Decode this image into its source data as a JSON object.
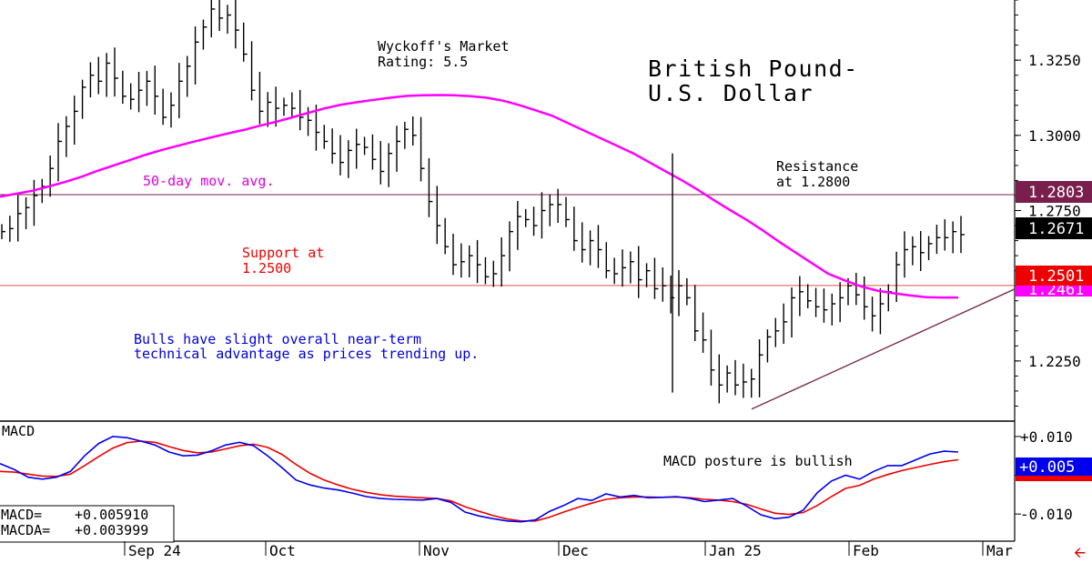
{
  "chart_data": {
    "type": "ohlc",
    "title_line1": "British Pound-",
    "title_line2": "U.S. Dollar",
    "rating_line1": "Wyckoff's Market",
    "rating_line2": "Rating: 5.5",
    "annotations": {
      "moving_average_label": "50-day mov. avg.",
      "support_line1": "Support at",
      "support_line2": "1.2500",
      "resistance_line1": "Resistance",
      "resistance_line2": "at 1.2800",
      "commentary_line1": "Bulls have slight overall near-term",
      "commentary_line2": "technical advantage as prices trending up.",
      "macd_comment": "MACD posture is bullish"
    },
    "x_ticks": [
      "Sep 24",
      "Oct",
      "Nov",
      "Dec",
      "Jan 25",
      "Feb",
      "Mar"
    ],
    "price_axis": {
      "ticks": [
        "1.3250",
        "1.3000",
        "1.2750",
        "1.2250"
      ],
      "tick_values": [
        1.325,
        1.3,
        1.275,
        1.225
      ],
      "ylim": [
        1.205,
        1.345
      ]
    },
    "price_tags": {
      "resistance": "1.2803",
      "last": "1.2671",
      "support": "1.2501",
      "ma": "1.2461"
    },
    "levels": {
      "resistance": 1.2803,
      "support": 1.2501
    },
    "trendline": {
      "from": 1.209,
      "to": 1.2489
    },
    "colors": {
      "bars": "#000000",
      "moving_average": "#ff00ff",
      "resistance_line": "#7a1f4d",
      "support_line": "#e05050",
      "trendline": "#7a3050",
      "macd_line": "#0000ee",
      "signal_line": "#ee0000",
      "support_text": "#ee0000",
      "ma_text": "#dd00dd",
      "commentary_text": "#0000dd"
    },
    "price_series": [
      1.268,
      1.269,
      1.274,
      1.276,
      1.28,
      1.283,
      1.289,
      1.298,
      1.303,
      1.308,
      1.316,
      1.32,
      1.318,
      1.324,
      1.319,
      1.313,
      1.312,
      1.315,
      1.318,
      1.313,
      1.306,
      1.31,
      1.318,
      1.323,
      1.331,
      1.336,
      1.342,
      1.339,
      1.34,
      1.335,
      1.327,
      1.315,
      1.308,
      1.311,
      1.309,
      1.31,
      1.309,
      1.306,
      1.305,
      1.301,
      1.298,
      1.294,
      1.291,
      1.295,
      1.297,
      1.296,
      1.292,
      1.288,
      1.294,
      1.298,
      1.302,
      1.3,
      1.289,
      1.278,
      1.27,
      1.263,
      1.257,
      1.258,
      1.26,
      1.257,
      1.253,
      1.254,
      1.26,
      1.268,
      1.273,
      1.272,
      1.27,
      1.275,
      1.277,
      1.277,
      1.272,
      1.265,
      1.262,
      1.265,
      1.262,
      1.255,
      1.254,
      1.256,
      1.258,
      1.252,
      1.255,
      1.249,
      1.25,
      1.246,
      1.25,
      1.246,
      1.235,
      1.232,
      1.222,
      1.217,
      1.221,
      1.217,
      1.218,
      1.219,
      1.227,
      1.233,
      1.235,
      1.238,
      1.246,
      1.248,
      1.245,
      1.243,
      1.242,
      1.244,
      1.246,
      1.25,
      1.247,
      1.243,
      1.24,
      1.244,
      1.248,
      1.257,
      1.262,
      1.263,
      1.261,
      1.264,
      1.266,
      1.266,
      1.268,
      1.267
    ],
    "moving_average": [
      1.2796,
      1.2806,
      1.2816,
      1.283,
      1.2845,
      1.2862,
      1.2882,
      1.29,
      1.2918,
      1.2936,
      1.2952,
      1.2966,
      1.298,
      1.2993,
      1.3006,
      1.3018,
      1.3032,
      1.3045,
      1.306,
      1.3075,
      1.309,
      1.3102,
      1.311,
      1.3118,
      1.3125,
      1.3131,
      1.3133,
      1.3134,
      1.3133,
      1.313,
      1.3125,
      1.3115,
      1.31,
      1.3083,
      1.3065,
      1.304,
      1.3015,
      1.299,
      1.2965,
      1.294,
      1.291,
      1.288,
      1.285,
      1.2818,
      1.2783,
      1.275,
      1.2718,
      1.2683,
      1.2645,
      1.261,
      1.2575,
      1.254,
      1.2518,
      1.2498,
      1.2484,
      1.2475,
      1.2468,
      1.2462,
      1.2461,
      1.2461
    ],
    "macd": {
      "macd_label": "MACD",
      "macd_readout_label": "MACD=",
      "macd_readout_value": "+0.005910",
      "macda_readout_label": "MACDA=",
      "macda_readout_value": "+0.003999",
      "axis_ticks": [
        "+0.010",
        "0.000",
        "-0.010"
      ],
      "axis_values": [
        0.01,
        0.0,
        -0.01
      ],
      "ylim": [
        -0.017,
        0.0135
      ],
      "macd_tag": "+0.005",
      "macd_series": [
        0.003,
        0.0015,
        -0.0005,
        -0.001,
        -0.0005,
        0.001,
        0.005,
        0.0082,
        0.01,
        0.0097,
        0.0088,
        0.0078,
        0.006,
        0.005,
        0.0052,
        0.0063,
        0.0078,
        0.0085,
        0.0076,
        0.005,
        0.002,
        -0.0012,
        -0.0025,
        -0.0033,
        -0.0038,
        -0.0046,
        -0.0055,
        -0.006,
        -0.0062,
        -0.0063,
        -0.0064,
        -0.006,
        -0.007,
        -0.0095,
        -0.0105,
        -0.0112,
        -0.0118,
        -0.012,
        -0.0115,
        -0.0093,
        -0.0078,
        -0.006,
        -0.0065,
        -0.0048,
        -0.0056,
        -0.0052,
        -0.0058,
        -0.0057,
        -0.0055,
        -0.006,
        -0.0068,
        -0.0064,
        -0.006,
        -0.008,
        -0.0102,
        -0.0112,
        -0.0108,
        -0.009,
        -0.0045,
        -0.0015,
        0.0,
        -0.001,
        0.001,
        0.0025,
        0.0025,
        0.004,
        0.0055,
        0.0062,
        0.006
      ],
      "signal_series": [
        0.001,
        0.0008,
        0.0003,
        -0.0002,
        -0.0003,
        0.0003,
        0.0025,
        0.0048,
        0.007,
        0.0084,
        0.0088,
        0.0085,
        0.0074,
        0.0064,
        0.0058,
        0.006,
        0.0068,
        0.0076,
        0.008,
        0.0072,
        0.0054,
        0.0028,
        0.0005,
        -0.0012,
        -0.0025,
        -0.0036,
        -0.0044,
        -0.005,
        -0.0054,
        -0.0056,
        -0.0058,
        -0.006,
        -0.0066,
        -0.0081,
        -0.0093,
        -0.0104,
        -0.0113,
        -0.0118,
        -0.0118,
        -0.0108,
        -0.0095,
        -0.0083,
        -0.0072,
        -0.0062,
        -0.0058,
        -0.0056,
        -0.0056,
        -0.0057,
        -0.0056,
        -0.0058,
        -0.0062,
        -0.0064,
        -0.0068,
        -0.0075,
        -0.0087,
        -0.0098,
        -0.0101,
        -0.0096,
        -0.0078,
        -0.0055,
        -0.0034,
        -0.0026,
        -0.001,
        0.0002,
        0.0012,
        0.002,
        0.0028,
        0.0035,
        0.004
      ]
    }
  }
}
